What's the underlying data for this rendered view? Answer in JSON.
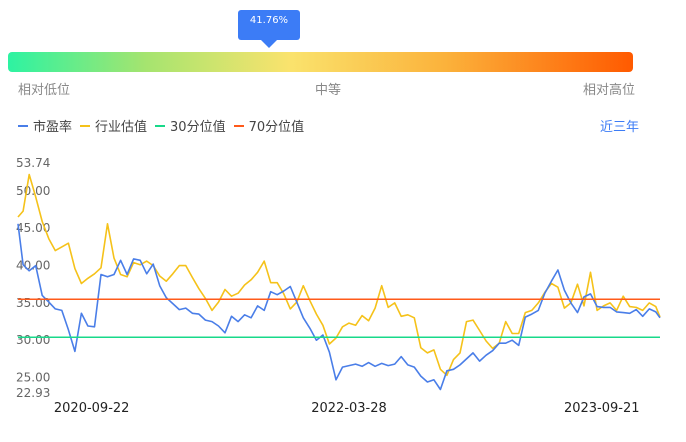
{
  "gauge": {
    "percent_text": "41.76%",
    "percent": 41.76,
    "low_label": "相对低位",
    "mid_label": "中等",
    "high_label": "相对高位"
  },
  "period_label": "近三年",
  "chart_data": {
    "type": "line",
    "ylim": [
      22.93,
      53.74
    ],
    "y_ticks": [
      "53.74",
      "50.00",
      "45.00",
      "40.00",
      "35.00",
      "30.00",
      "25.00",
      "22.93"
    ],
    "x_ticks": [
      "2020-09-22",
      "2022-03-28",
      "2023-09-21"
    ],
    "legend": [
      {
        "name": "市盈率",
        "color": "#4a7ee8"
      },
      {
        "name": "行业估值",
        "color": "#f5c21a"
      },
      {
        "name": "30分位值",
        "color": "#18d98a"
      },
      {
        "name": "70分位值",
        "color": "#ff5a1a"
      }
    ],
    "series": [
      {
        "name": "市盈率",
        "color": "#4a7ee8",
        "points": [
          [
            "2020-04-17",
            45.6
          ],
          [
            "2020-04-28",
            40.1
          ],
          [
            "2020-05-11",
            39.3
          ],
          [
            "2020-05-25",
            40.0
          ],
          [
            "2020-06-08",
            36.0
          ],
          [
            "2020-06-22",
            35.1
          ],
          [
            "2020-07-06",
            34.2
          ],
          [
            "2020-07-20",
            34.0
          ],
          [
            "2020-08-03",
            31.4
          ],
          [
            "2020-08-17",
            28.5
          ],
          [
            "2020-08-31",
            33.6
          ],
          [
            "2020-09-14",
            31.9
          ],
          [
            "2020-09-28",
            31.8
          ],
          [
            "2020-10-12",
            38.8
          ],
          [
            "2020-10-26",
            38.5
          ],
          [
            "2020-11-09",
            38.8
          ],
          [
            "2020-11-23",
            40.7
          ],
          [
            "2020-12-07",
            38.8
          ],
          [
            "2020-12-21",
            40.9
          ],
          [
            "2021-01-04",
            40.7
          ],
          [
            "2021-01-18",
            38.9
          ],
          [
            "2021-02-01",
            40.2
          ],
          [
            "2021-02-15",
            37.3
          ],
          [
            "2021-03-01",
            35.7
          ],
          [
            "2021-03-15",
            34.9
          ],
          [
            "2021-03-29",
            34.1
          ],
          [
            "2021-04-12",
            34.3
          ],
          [
            "2021-04-26",
            33.6
          ],
          [
            "2021-05-10",
            33.5
          ],
          [
            "2021-05-24",
            32.7
          ],
          [
            "2021-06-07",
            32.5
          ],
          [
            "2021-06-21",
            31.9
          ],
          [
            "2021-07-05",
            31.0
          ],
          [
            "2021-07-19",
            33.2
          ],
          [
            "2021-08-02",
            32.5
          ],
          [
            "2021-08-16",
            33.4
          ],
          [
            "2021-08-30",
            33.0
          ],
          [
            "2021-09-13",
            34.6
          ],
          [
            "2021-09-27",
            34.0
          ],
          [
            "2021-10-11",
            36.5
          ],
          [
            "2021-10-25",
            36.1
          ],
          [
            "2021-11-08",
            36.6
          ],
          [
            "2021-11-22",
            37.2
          ],
          [
            "2021-12-06",
            35.1
          ],
          [
            "2021-12-20",
            33.0
          ],
          [
            "2022-01-03",
            31.6
          ],
          [
            "2022-01-17",
            30.0
          ],
          [
            "2022-01-31",
            30.7
          ],
          [
            "2022-02-14",
            28.4
          ],
          [
            "2022-02-28",
            24.7
          ],
          [
            "2022-03-14",
            26.4
          ],
          [
            "2022-03-28",
            26.6
          ],
          [
            "2022-04-11",
            26.8
          ],
          [
            "2022-04-25",
            26.5
          ],
          [
            "2022-05-09",
            27.0
          ],
          [
            "2022-05-23",
            26.5
          ],
          [
            "2022-06-06",
            26.9
          ],
          [
            "2022-06-20",
            26.6
          ],
          [
            "2022-07-04",
            26.8
          ],
          [
            "2022-07-18",
            27.8
          ],
          [
            "2022-08-01",
            26.7
          ],
          [
            "2022-08-15",
            26.4
          ],
          [
            "2022-08-29",
            25.2
          ],
          [
            "2022-09-12",
            24.4
          ],
          [
            "2022-09-26",
            24.7
          ],
          [
            "2022-10-10",
            23.4
          ],
          [
            "2022-10-24",
            25.9
          ],
          [
            "2022-11-07",
            26.1
          ],
          [
            "2022-11-21",
            26.7
          ],
          [
            "2022-12-05",
            27.5
          ],
          [
            "2022-12-19",
            28.3
          ],
          [
            "2023-01-02",
            27.2
          ],
          [
            "2023-01-16",
            28.0
          ],
          [
            "2023-01-30",
            28.6
          ],
          [
            "2023-02-13",
            29.6
          ],
          [
            "2023-02-27",
            29.6
          ],
          [
            "2023-03-13",
            30.0
          ],
          [
            "2023-03-27",
            29.3
          ],
          [
            "2023-04-10",
            33.1
          ],
          [
            "2023-04-24",
            33.5
          ],
          [
            "2023-05-08",
            34.0
          ],
          [
            "2023-05-22",
            36.3
          ],
          [
            "2023-06-05",
            37.9
          ],
          [
            "2023-06-19",
            39.4
          ],
          [
            "2023-07-03",
            36.7
          ],
          [
            "2023-07-17",
            35.0
          ],
          [
            "2023-07-31",
            33.7
          ],
          [
            "2023-08-14",
            35.8
          ],
          [
            "2023-08-28",
            36.2
          ],
          [
            "2023-09-11",
            34.5
          ],
          [
            "2023-09-25",
            34.4
          ],
          [
            "2023-10-09",
            34.4
          ],
          [
            "2023-10-23",
            33.8
          ],
          [
            "2023-11-06",
            33.7
          ],
          [
            "2023-11-20",
            33.6
          ],
          [
            "2023-12-04",
            34.1
          ],
          [
            "2023-12-18",
            33.2
          ],
          [
            "2024-01-01",
            34.2
          ],
          [
            "2024-01-15",
            33.8
          ],
          [
            "2024-01-24",
            33.0
          ]
        ]
      },
      {
        "name": "行业估值",
        "color": "#f5c21a",
        "points": [
          [
            "2020-04-17",
            46.5
          ],
          [
            "2020-04-28",
            47.3
          ],
          [
            "2020-05-11",
            52.2
          ],
          [
            "2020-05-25",
            49.2
          ],
          [
            "2020-06-08",
            45.9
          ],
          [
            "2020-06-22",
            43.6
          ],
          [
            "2020-07-06",
            42.0
          ],
          [
            "2020-07-20",
            42.5
          ],
          [
            "2020-08-03",
            43.0
          ],
          [
            "2020-08-17",
            39.6
          ],
          [
            "2020-08-31",
            37.6
          ],
          [
            "2020-09-14",
            38.3
          ],
          [
            "2020-09-28",
            38.9
          ],
          [
            "2020-10-12",
            39.7
          ],
          [
            "2020-10-26",
            45.6
          ],
          [
            "2020-11-09",
            41.0
          ],
          [
            "2020-11-23",
            38.8
          ],
          [
            "2020-12-07",
            38.5
          ],
          [
            "2020-12-21",
            40.4
          ],
          [
            "2021-01-04",
            40.1
          ],
          [
            "2021-01-18",
            40.6
          ],
          [
            "2021-02-01",
            40.0
          ],
          [
            "2021-02-15",
            38.6
          ],
          [
            "2021-03-01",
            37.9
          ],
          [
            "2021-03-15",
            38.9
          ],
          [
            "2021-03-29",
            40.0
          ],
          [
            "2021-04-12",
            40.0
          ],
          [
            "2021-04-26",
            38.4
          ],
          [
            "2021-05-10",
            36.9
          ],
          [
            "2021-05-24",
            35.6
          ],
          [
            "2021-06-07",
            34.0
          ],
          [
            "2021-06-21",
            35.1
          ],
          [
            "2021-07-05",
            36.8
          ],
          [
            "2021-07-19",
            35.9
          ],
          [
            "2021-08-02",
            36.3
          ],
          [
            "2021-08-16",
            37.4
          ],
          [
            "2021-08-30",
            38.1
          ],
          [
            "2021-09-13",
            39.1
          ],
          [
            "2021-09-27",
            40.6
          ],
          [
            "2021-10-11",
            37.7
          ],
          [
            "2021-10-25",
            37.7
          ],
          [
            "2021-11-08",
            36.2
          ],
          [
            "2021-11-22",
            34.2
          ],
          [
            "2021-12-06",
            35.1
          ],
          [
            "2021-12-20",
            37.3
          ],
          [
            "2022-01-03",
            35.3
          ],
          [
            "2022-01-17",
            33.5
          ],
          [
            "2022-01-31",
            32.0
          ],
          [
            "2022-02-14",
            29.5
          ],
          [
            "2022-02-28",
            30.3
          ],
          [
            "2022-03-14",
            31.8
          ],
          [
            "2022-03-28",
            32.3
          ],
          [
            "2022-04-11",
            32.0
          ],
          [
            "2022-04-25",
            33.3
          ],
          [
            "2022-05-09",
            32.6
          ],
          [
            "2022-05-23",
            34.3
          ],
          [
            "2022-06-06",
            37.3
          ],
          [
            "2022-06-20",
            34.4
          ],
          [
            "2022-07-04",
            35.0
          ],
          [
            "2022-07-18",
            33.2
          ],
          [
            "2022-08-01",
            33.4
          ],
          [
            "2022-08-15",
            33.0
          ],
          [
            "2022-08-29",
            29.0
          ],
          [
            "2022-09-12",
            28.3
          ],
          [
            "2022-09-26",
            28.7
          ],
          [
            "2022-10-10",
            26.1
          ],
          [
            "2022-10-24",
            25.3
          ],
          [
            "2022-11-07",
            27.4
          ],
          [
            "2022-11-21",
            28.3
          ],
          [
            "2022-12-05",
            32.5
          ],
          [
            "2022-12-19",
            32.7
          ],
          [
            "2023-01-02",
            31.3
          ],
          [
            "2023-01-16",
            29.9
          ],
          [
            "2023-01-30",
            28.9
          ],
          [
            "2023-02-13",
            29.6
          ],
          [
            "2023-02-27",
            32.5
          ],
          [
            "2023-03-13",
            30.9
          ],
          [
            "2023-03-27",
            30.9
          ],
          [
            "2023-04-10",
            33.7
          ],
          [
            "2023-04-24",
            34.0
          ],
          [
            "2023-05-08",
            35.0
          ],
          [
            "2023-05-22",
            36.4
          ],
          [
            "2023-06-05",
            37.6
          ],
          [
            "2023-06-19",
            37.1
          ],
          [
            "2023-07-03",
            34.3
          ],
          [
            "2023-07-17",
            35.0
          ],
          [
            "2023-07-31",
            37.5
          ],
          [
            "2023-08-14",
            34.6
          ],
          [
            "2023-08-28",
            39.1
          ],
          [
            "2023-09-11",
            34.0
          ],
          [
            "2023-09-25",
            34.6
          ],
          [
            "2023-10-09",
            35.0
          ],
          [
            "2023-10-23",
            34.0
          ],
          [
            "2023-11-06",
            35.9
          ],
          [
            "2023-11-20",
            34.5
          ],
          [
            "2023-12-04",
            34.4
          ],
          [
            "2023-12-18",
            34.0
          ],
          [
            "2024-01-01",
            35.0
          ],
          [
            "2024-01-15",
            34.5
          ],
          [
            "2024-01-24",
            33.1
          ]
        ]
      },
      {
        "name": "30分位值",
        "color": "#18d98a",
        "points": [
          [
            "2020-04-17",
            30.4
          ],
          [
            "2024-01-24",
            30.4
          ]
        ]
      },
      {
        "name": "70分位值",
        "color": "#ff5a1a",
        "points": [
          [
            "2020-04-17",
            35.5
          ],
          [
            "2024-01-24",
            35.5
          ]
        ]
      }
    ]
  }
}
